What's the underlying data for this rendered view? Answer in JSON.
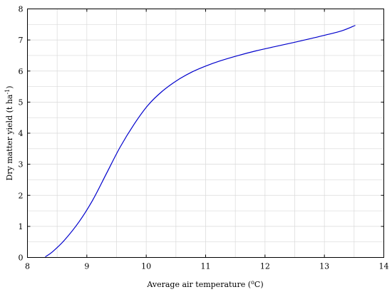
{
  "chart_data": {
    "type": "line",
    "xlabel": "Average air temperature",
    "xlabel_sup": "o",
    "xlabel_unit": "C",
    "ylabel": "Dry matter yield (t ha",
    "ylabel_sup": "-1",
    "ylabel_end": ")",
    "xlim": [
      8,
      14
    ],
    "ylim": [
      0,
      8
    ],
    "xticks": [
      "8",
      "9",
      "10",
      "11",
      "12",
      "13",
      "14"
    ],
    "yticks": [
      "0",
      "1",
      "2",
      "3",
      "4",
      "5",
      "6",
      "7",
      "8"
    ],
    "grid": true,
    "line_color": "#0000cc",
    "series": [
      {
        "x": [
          8.3,
          8.42,
          8.62,
          8.87,
          9.1,
          9.33,
          9.56,
          9.8,
          10.03,
          10.27,
          10.52,
          10.77,
          11.0,
          11.25,
          11.55,
          11.85,
          12.2,
          12.6,
          13.0,
          13.3,
          13.52
        ],
        "y": [
          0.02,
          0.18,
          0.55,
          1.15,
          1.85,
          2.7,
          3.55,
          4.3,
          4.9,
          5.35,
          5.7,
          5.97,
          6.16,
          6.33,
          6.5,
          6.65,
          6.8,
          6.97,
          7.15,
          7.3,
          7.47
        ]
      }
    ]
  }
}
